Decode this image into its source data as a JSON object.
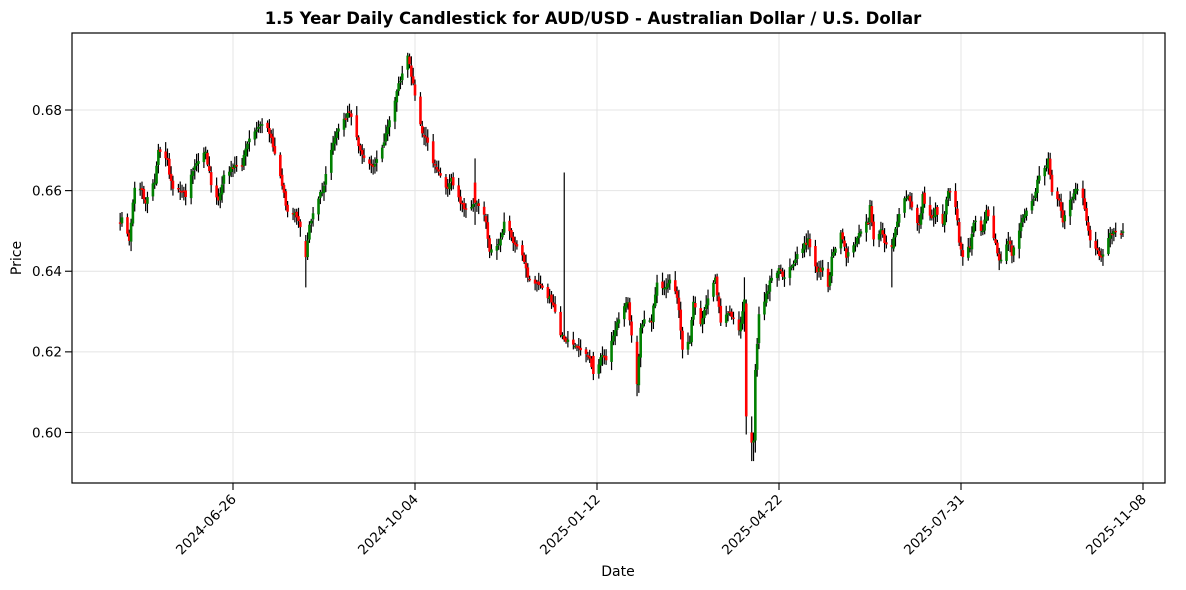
{
  "chart_data": {
    "type": "candlestick",
    "title": "1.5 Year Daily Candlestick for AUD/USD - Australian Dollar / U.S. Dollar",
    "xlabel": "Date",
    "ylabel": "Price",
    "x_tick_labels": [
      "2024-06-26",
      "2024-10-04",
      "2025-01-12",
      "2025-04-22",
      "2025-07-31",
      "2025-11-08"
    ],
    "y_ticks": [
      0.6,
      0.62,
      0.64,
      0.66,
      0.68
    ],
    "ylim": [
      0.5875,
      0.6991
    ],
    "date_range": [
      "2024-04-25",
      "2025-10-28"
    ],
    "grid": true,
    "up_color": "#008000",
    "down_color": "#ff0000",
    "wick_color": "#000000",
    "close_path": [
      [
        "2024-04-25",
        0.6525
      ],
      [
        "2024-04-26",
        0.6535
      ],
      [
        "2024-04-30",
        0.6475
      ],
      [
        "2024-05-02",
        0.6565
      ],
      [
        "2024-05-03",
        0.661
      ],
      [
        "2024-05-07",
        0.6595
      ],
      [
        "2024-05-09",
        0.6575
      ],
      [
        "2024-05-14",
        0.6625
      ],
      [
        "2024-05-16",
        0.6695
      ],
      [
        "2024-05-21",
        0.667
      ],
      [
        "2024-05-24",
        0.66
      ],
      [
        "2024-05-29",
        0.6605
      ],
      [
        "2024-05-31",
        0.658
      ],
      [
        "2024-06-04",
        0.665
      ],
      [
        "2024-06-06",
        0.6665
      ],
      [
        "2024-06-11",
        0.67
      ],
      [
        "2024-06-14",
        0.6615
      ],
      [
        "2024-06-18",
        0.6575
      ],
      [
        "2024-06-21",
        0.664
      ],
      [
        "2024-06-26",
        0.6655
      ],
      [
        "2024-07-01",
        0.6665
      ],
      [
        "2024-07-04",
        0.672
      ],
      [
        "2024-07-08",
        0.674
      ],
      [
        "2024-07-11",
        0.6765
      ],
      [
        "2024-07-15",
        0.676
      ],
      [
        "2024-07-17",
        0.6725
      ],
      [
        "2024-07-19",
        0.6685
      ],
      [
        "2024-07-23",
        0.6615
      ],
      [
        "2024-07-26",
        0.6545
      ],
      [
        "2024-07-31",
        0.654
      ],
      [
        "2024-08-02",
        0.6515
      ],
      [
        "2024-08-05",
        0.6435
      ],
      [
        "2024-08-07",
        0.652
      ],
      [
        "2024-08-12",
        0.658
      ],
      [
        "2024-08-15",
        0.6615
      ],
      [
        "2024-08-20",
        0.672
      ],
      [
        "2024-08-23",
        0.6755
      ],
      [
        "2024-08-29",
        0.68
      ],
      [
        "2024-09-03",
        0.6715
      ],
      [
        "2024-09-06",
        0.668
      ],
      [
        "2024-09-11",
        0.6655
      ],
      [
        "2024-09-16",
        0.6705
      ],
      [
        "2024-09-20",
        0.678
      ],
      [
        "2024-09-25",
        0.686
      ],
      [
        "2024-09-30",
        0.6935
      ],
      [
        "2024-10-02",
        0.6885
      ],
      [
        "2024-10-04",
        0.684
      ],
      [
        "2024-10-08",
        0.674
      ],
      [
        "2024-10-10",
        0.673
      ],
      [
        "2024-10-14",
        0.6665
      ],
      [
        "2024-10-17",
        0.6645
      ],
      [
        "2024-10-22",
        0.66
      ],
      [
        "2024-10-24",
        0.6625
      ],
      [
        "2024-10-29",
        0.6565
      ],
      [
        "2024-11-01",
        0.6555
      ],
      [
        "2024-11-06",
        0.657
      ],
      [
        "2024-11-11",
        0.6545
      ],
      [
        "2024-11-14",
        0.6455
      ],
      [
        "2024-11-19",
        0.6465
      ],
      [
        "2024-11-22",
        0.652
      ],
      [
        "2024-11-27",
        0.6475
      ],
      [
        "2024-12-02",
        0.6435
      ],
      [
        "2024-12-05",
        0.6385
      ],
      [
        "2024-12-10",
        0.6365
      ],
      [
        "2024-12-13",
        0.636
      ],
      [
        "2024-12-18",
        0.6325
      ],
      [
        "2024-12-23",
        0.6245
      ],
      [
        "2024-12-25",
        0.623
      ],
      [
        "2024-12-30",
        0.6215
      ],
      [
        "2025-01-03",
        0.6205
      ],
      [
        "2025-01-08",
        0.619
      ],
      [
        "2025-01-10",
        0.6145
      ],
      [
        "2025-01-15",
        0.619
      ],
      [
        "2025-01-17",
        0.6175
      ],
      [
        "2025-01-22",
        0.6255
      ],
      [
        "2025-01-24",
        0.6285
      ],
      [
        "2025-01-27",
        0.631
      ],
      [
        "2025-01-29",
        0.632
      ],
      [
        "2025-01-31",
        0.6245
      ],
      [
        "2025-02-03",
        0.612
      ],
      [
        "2025-02-05",
        0.6255
      ],
      [
        "2025-02-07",
        0.628
      ],
      [
        "2025-02-11",
        0.628
      ],
      [
        "2025-02-14",
        0.6365
      ],
      [
        "2025-02-19",
        0.6355
      ],
      [
        "2025-02-21",
        0.638
      ],
      [
        "2025-02-25",
        0.634
      ],
      [
        "2025-02-28",
        0.621
      ],
      [
        "2025-03-04",
        0.6225
      ],
      [
        "2025-03-06",
        0.633
      ],
      [
        "2025-03-10",
        0.627
      ],
      [
        "2025-03-13",
        0.632
      ],
      [
        "2025-03-18",
        0.638
      ],
      [
        "2025-03-21",
        0.627
      ],
      [
        "2025-03-26",
        0.63
      ],
      [
        "2025-03-31",
        0.625
      ],
      [
        "2025-04-02",
        0.63
      ],
      [
        "2025-04-03",
        0.633
      ],
      [
        "2025-04-04",
        0.604
      ],
      [
        "2025-04-07",
        0.5975
      ],
      [
        "2025-04-08",
        0.598
      ],
      [
        "2025-04-09",
        0.6155
      ],
      [
        "2025-04-10",
        0.622
      ],
      [
        "2025-04-11",
        0.629
      ],
      [
        "2025-04-15",
        0.634
      ],
      [
        "2025-04-17",
        0.6375
      ],
      [
        "2025-04-22",
        0.6405
      ],
      [
        "2025-04-24",
        0.6385
      ],
      [
        "2025-04-29",
        0.641
      ],
      [
        "2025-05-02",
        0.6445
      ],
      [
        "2025-05-06",
        0.6465
      ],
      [
        "2025-05-08",
        0.648
      ],
      [
        "2025-05-13",
        0.64
      ],
      [
        "2025-05-16",
        0.6405
      ],
      [
        "2025-05-19",
        0.6355
      ],
      [
        "2025-05-21",
        0.6435
      ],
      [
        "2025-05-26",
        0.65
      ],
      [
        "2025-05-29",
        0.6435
      ],
      [
        "2025-06-02",
        0.646
      ],
      [
        "2025-06-05",
        0.65
      ],
      [
        "2025-06-10",
        0.6525
      ],
      [
        "2025-06-11",
        0.6565
      ],
      [
        "2025-06-13",
        0.648
      ],
      [
        "2025-06-17",
        0.6505
      ],
      [
        "2025-06-19",
        0.6475
      ],
      [
        "2025-06-23",
        0.646
      ],
      [
        "2025-06-25",
        0.651
      ],
      [
        "2025-06-27",
        0.6545
      ],
      [
        "2025-07-01",
        0.6585
      ],
      [
        "2025-07-03",
        0.6575
      ],
      [
        "2025-07-08",
        0.651
      ],
      [
        "2025-07-10",
        0.6585
      ],
      [
        "2025-07-15",
        0.6525
      ],
      [
        "2025-07-17",
        0.655
      ],
      [
        "2025-07-21",
        0.652
      ],
      [
        "2025-07-24",
        0.6605
      ],
      [
        "2025-07-28",
        0.6565
      ],
      [
        "2025-07-30",
        0.6475
      ],
      [
        "2025-08-01",
        0.6435
      ],
      [
        "2025-08-05",
        0.6465
      ],
      [
        "2025-08-07",
        0.6525
      ],
      [
        "2025-08-12",
        0.65
      ],
      [
        "2025-08-14",
        0.6545
      ],
      [
        "2025-08-19",
        0.6475
      ],
      [
        "2025-08-21",
        0.6425
      ],
      [
        "2025-08-26",
        0.6475
      ],
      [
        "2025-08-28",
        0.6445
      ],
      [
        "2025-09-02",
        0.652
      ],
      [
        "2025-09-05",
        0.655
      ],
      [
        "2025-09-09",
        0.658
      ],
      [
        "2025-09-11",
        0.6625
      ],
      [
        "2025-09-15",
        0.6655
      ],
      [
        "2025-09-17",
        0.668
      ],
      [
        "2025-09-19",
        0.659
      ],
      [
        "2025-09-23",
        0.6575
      ],
      [
        "2025-09-25",
        0.6525
      ],
      [
        "2025-09-30",
        0.6585
      ],
      [
        "2025-10-02",
        0.661
      ],
      [
        "2025-10-06",
        0.6585
      ],
      [
        "2025-10-08",
        0.653
      ],
      [
        "2025-10-10",
        0.6475
      ],
      [
        "2025-10-14",
        0.6445
      ],
      [
        "2025-10-16",
        0.6435
      ],
      [
        "2025-10-20",
        0.648
      ],
      [
        "2025-10-23",
        0.6505
      ],
      [
        "2025-10-27",
        0.65
      ],
      [
        "2025-10-28",
        0.6505
      ]
    ],
    "outlier_candles": {
      "2024-08-05": [
        0.6475,
        0.649,
        0.636,
        0.6435
      ],
      "2024-09-30": [
        0.69,
        0.6942,
        0.688,
        0.6935
      ],
      "2024-11-06": [
        0.662,
        0.668,
        0.6515,
        0.657
      ],
      "2024-12-25": [
        0.624,
        0.6645,
        0.6225,
        0.623
      ],
      "2025-01-10": [
        0.619,
        0.62,
        0.613,
        0.6145
      ],
      "2025-02-03": [
        0.6225,
        0.624,
        0.609,
        0.612
      ],
      "2025-04-03": [
        0.63,
        0.6385,
        0.625,
        0.633
      ],
      "2025-04-04": [
        0.632,
        0.633,
        0.5995,
        0.604
      ],
      "2025-04-07": [
        0.6,
        0.604,
        0.5929,
        0.5975
      ],
      "2025-04-08": [
        0.5975,
        0.6,
        0.5929,
        0.598
      ],
      "2025-04-09": [
        0.598,
        0.617,
        0.595,
        0.6155
      ],
      "2025-06-23": [
        0.6465,
        0.648,
        0.636,
        0.646
      ],
      "2025-09-17": [
        0.6655,
        0.6695,
        0.664,
        0.668
      ]
    }
  }
}
